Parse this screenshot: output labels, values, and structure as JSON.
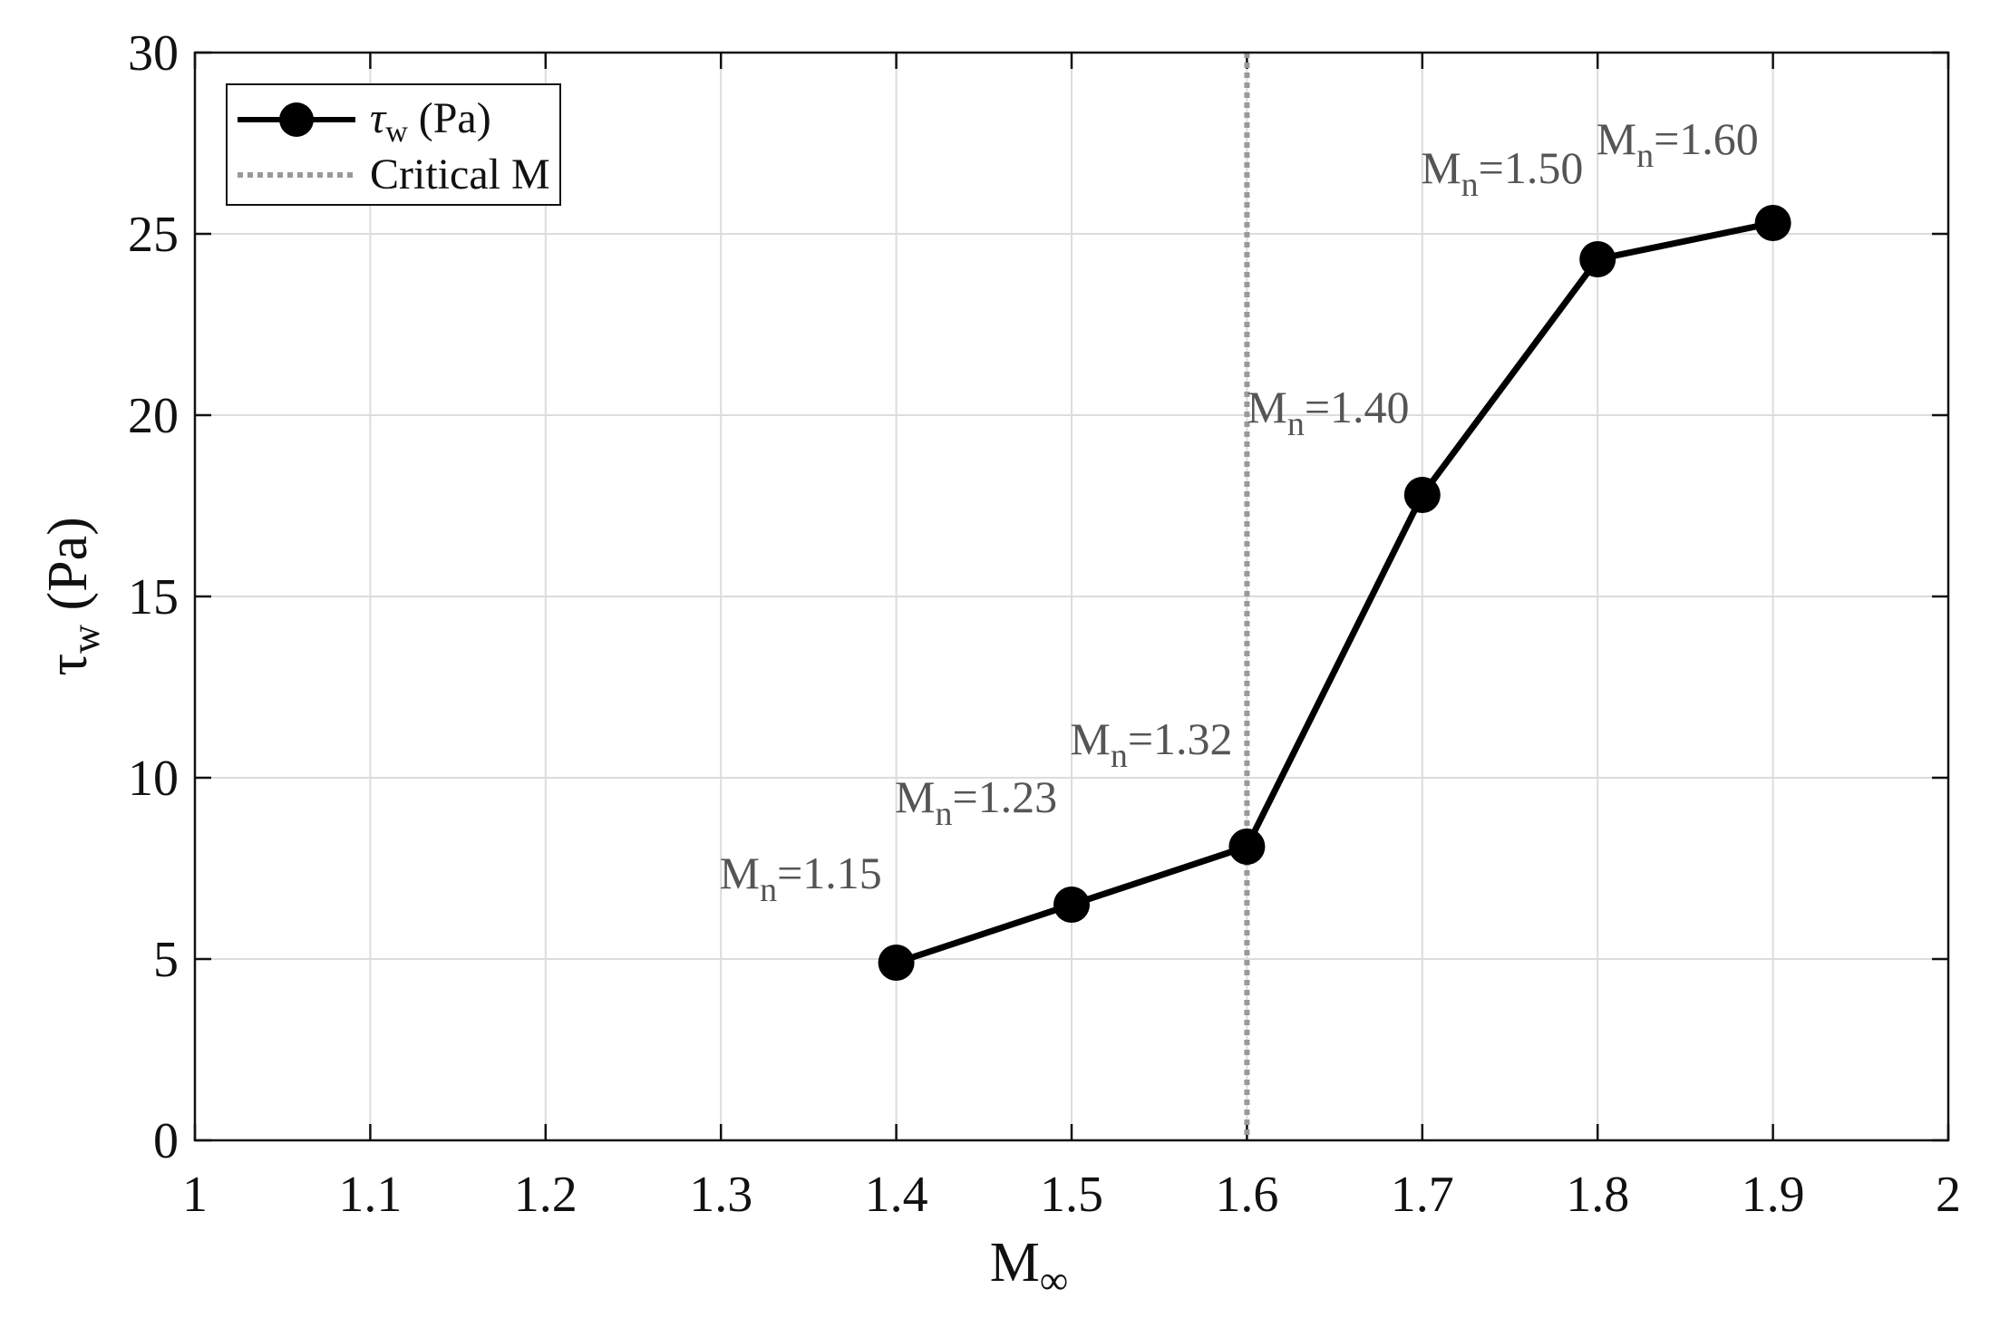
{
  "chart_data": {
    "type": "line",
    "x": [
      1.4,
      1.5,
      1.6,
      1.7,
      1.8,
      1.9
    ],
    "series": [
      {
        "name": "τw  (Pa)",
        "name_main": "τ",
        "name_sub": "w",
        "name_rest": " (Pa)",
        "values": [
          4.9,
          6.5,
          8.1,
          17.8,
          24.3,
          25.3
        ],
        "color": "#000000"
      }
    ],
    "reference_line": {
      "name": "Critical M",
      "x": 1.6,
      "style": "dotted",
      "color": "#999999"
    },
    "annotations": [
      {
        "main": "M",
        "sub": "n",
        "rest": "=1.15"
      },
      {
        "main": "M",
        "sub": "n",
        "rest": "=1.23"
      },
      {
        "main": "M",
        "sub": "n",
        "rest": "=1.32"
      },
      {
        "main": "M",
        "sub": "n",
        "rest": "=1.40"
      },
      {
        "main": "M",
        "sub": "n",
        "rest": "=1.50"
      },
      {
        "main": "M",
        "sub": "n",
        "rest": "=1.60"
      }
    ],
    "xlabel": {
      "main": "M",
      "sub": "∞"
    },
    "ylabel": {
      "main": "τ",
      "sub": "w",
      "rest": " (Pa)"
    },
    "xlim": [
      1,
      2
    ],
    "ylim": [
      0,
      30
    ],
    "xticks": [
      "1",
      "1.1",
      "1.2",
      "1.3",
      "1.4",
      "1.5",
      "1.6",
      "1.7",
      "1.8",
      "1.9",
      "2"
    ],
    "yticks": [
      "0",
      "5",
      "10",
      "15",
      "20",
      "25",
      "30"
    ],
    "grid": true,
    "legend_position": "top-left"
  }
}
